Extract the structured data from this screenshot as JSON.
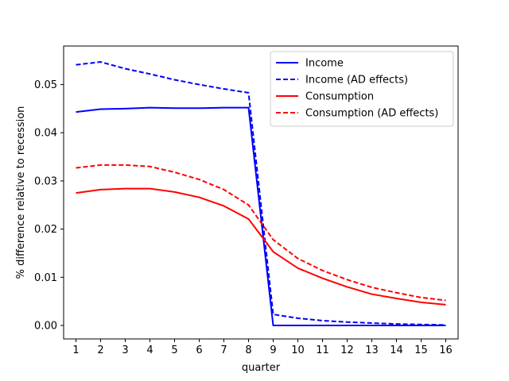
{
  "chart_data": {
    "type": "line",
    "xlabel": "quarter",
    "ylabel": "% difference relative to recession",
    "x": [
      1,
      2,
      3,
      4,
      5,
      6,
      7,
      8,
      9,
      10,
      11,
      12,
      13,
      14,
      15,
      16
    ],
    "xlim": [
      0.5,
      16.5
    ],
    "ylim": [
      -0.0028,
      0.058
    ],
    "yticks": [
      0.0,
      0.01,
      0.02,
      0.03,
      0.04,
      0.05
    ],
    "ytick_labels": [
      "0.00",
      "0.01",
      "0.02",
      "0.03",
      "0.04",
      "0.05"
    ],
    "legend_position": "top-right",
    "grid": false,
    "series": [
      {
        "name": "Income",
        "color": "#0000ff",
        "style": "solid",
        "values": [
          0.0443,
          0.0449,
          0.045,
          0.0452,
          0.0451,
          0.0451,
          0.0452,
          0.0452,
          0.0,
          0.0,
          0.0,
          0.0,
          0.0,
          0.0,
          0.0,
          0.0
        ]
      },
      {
        "name": "Income (AD effects)",
        "color": "#0000ff",
        "style": "dashed",
        "values": [
          0.0541,
          0.0547,
          0.0533,
          0.0522,
          0.051,
          0.05,
          0.0491,
          0.0483,
          0.0023,
          0.0015,
          0.001,
          0.0007,
          0.0005,
          0.0003,
          0.0002,
          0.0001
        ]
      },
      {
        "name": "Consumption",
        "color": "#ff0000",
        "style": "solid",
        "values": [
          0.0275,
          0.0282,
          0.0284,
          0.0284,
          0.0277,
          0.0266,
          0.0248,
          0.0221,
          0.0153,
          0.0119,
          0.0098,
          0.008,
          0.0065,
          0.0056,
          0.0048,
          0.0043
        ]
      },
      {
        "name": "Consumption (AD effects)",
        "color": "#ff0000",
        "style": "dashed",
        "values": [
          0.0327,
          0.0333,
          0.0333,
          0.033,
          0.0318,
          0.0303,
          0.0282,
          0.025,
          0.0178,
          0.0139,
          0.0114,
          0.0095,
          0.0079,
          0.0068,
          0.0058,
          0.0052
        ]
      }
    ]
  }
}
